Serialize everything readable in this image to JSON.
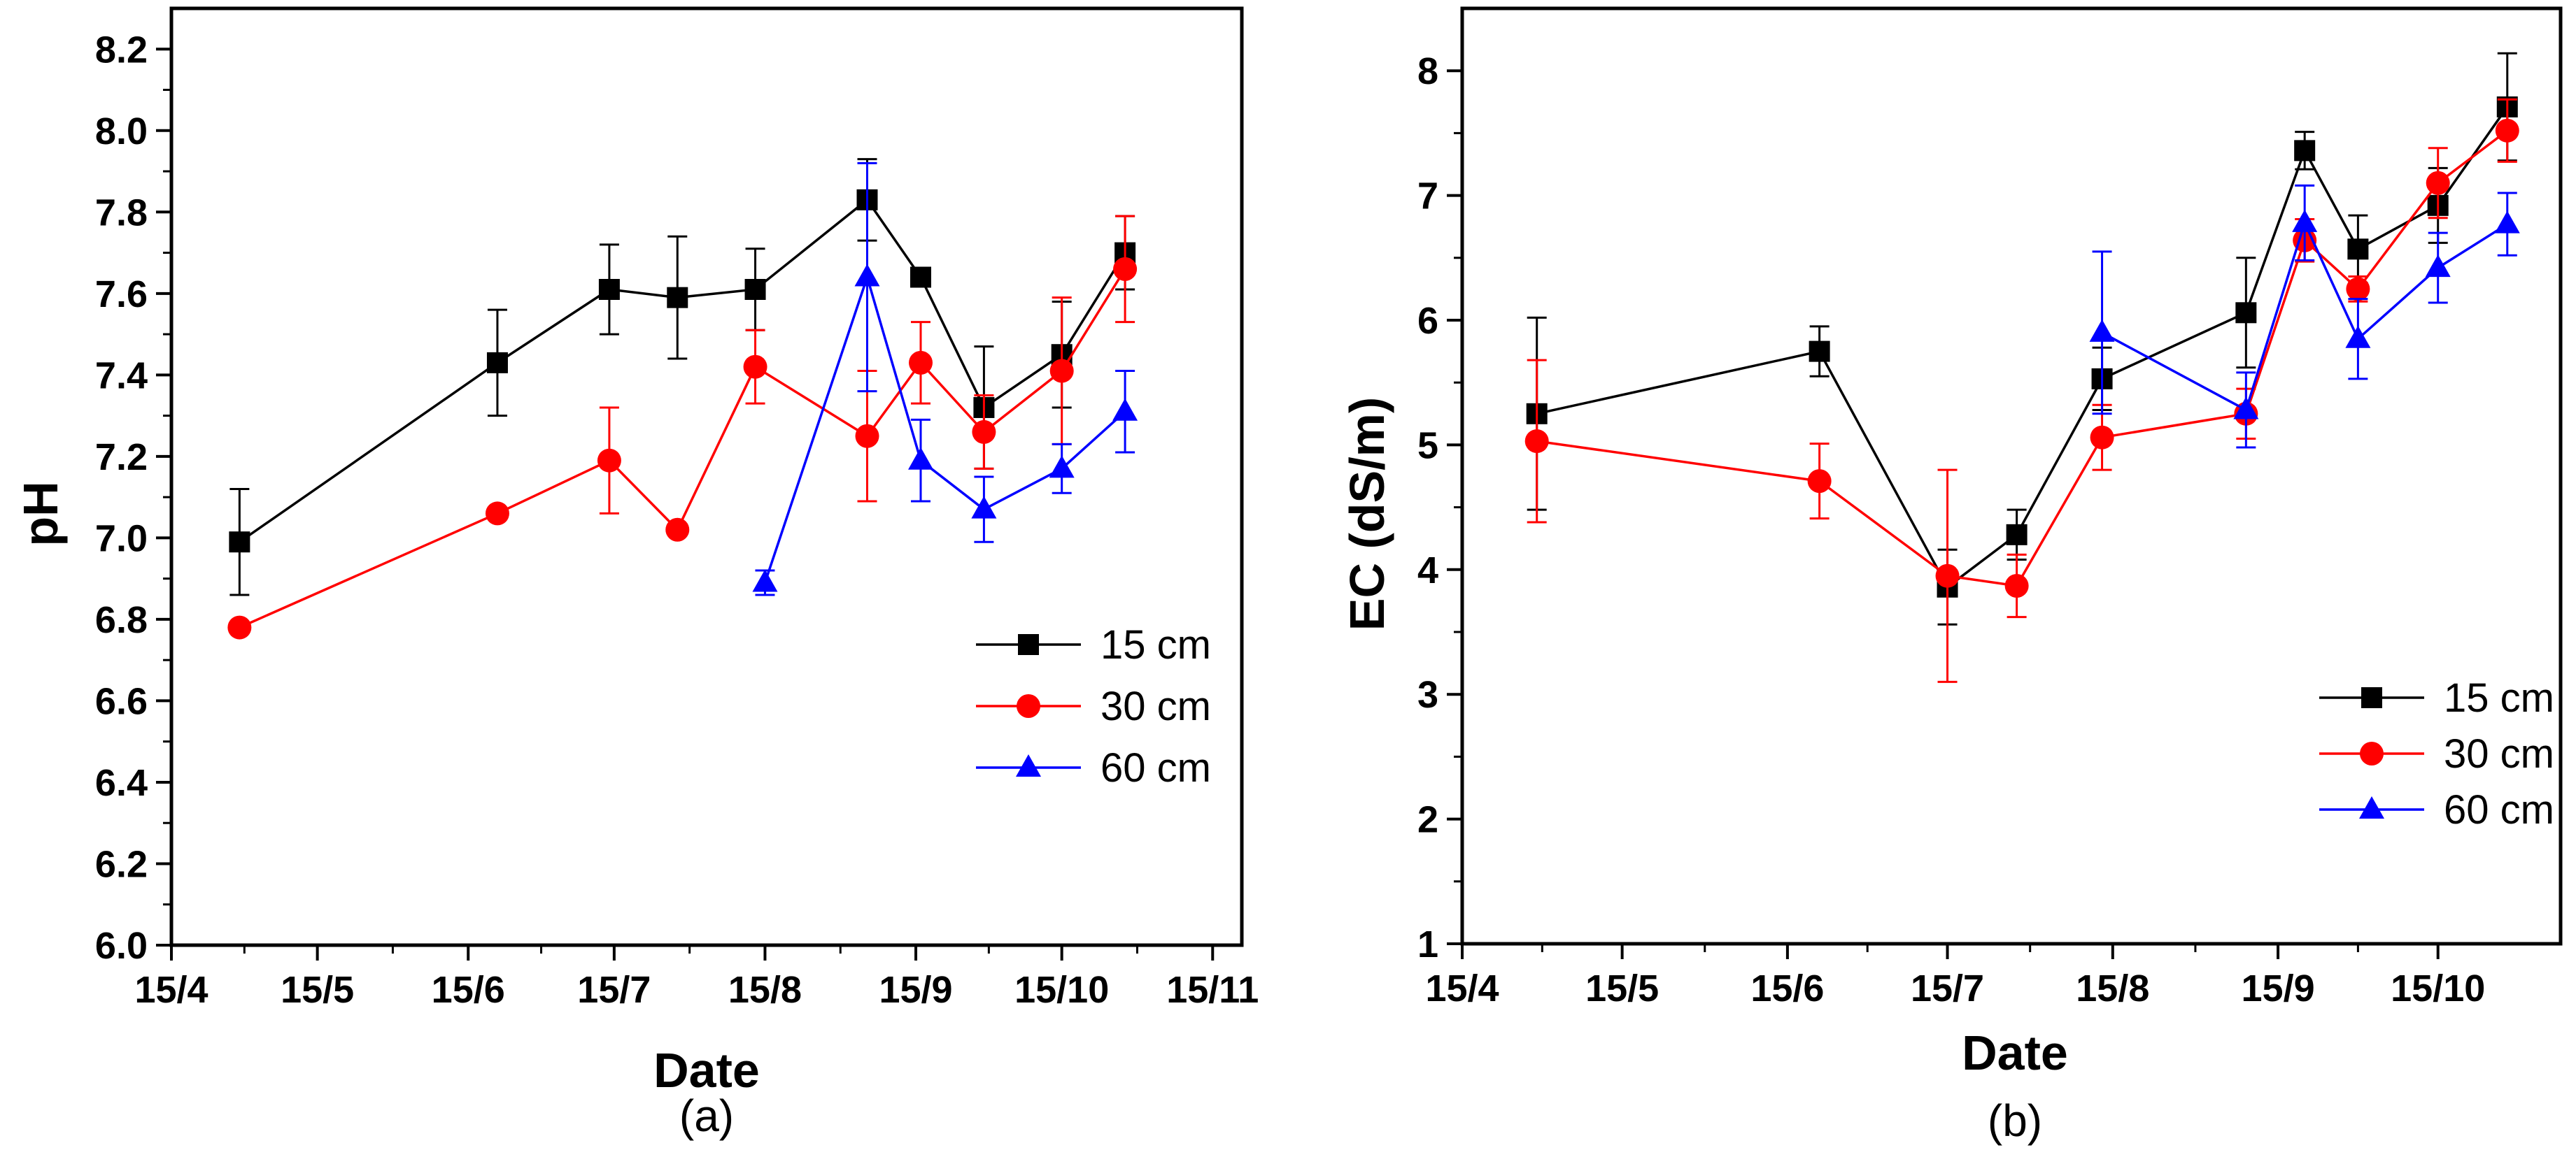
{
  "chart_data": [
    {
      "type": "line",
      "panel_label": "(a)",
      "xlabel": "Date",
      "ylabel": "pH",
      "xlim": [
        0,
        220
      ],
      "ylim": [
        6.0,
        8.3
      ],
      "x_tick_positions": [
        0,
        30,
        61,
        91,
        122,
        153,
        183,
        214
      ],
      "x_tick_labels": [
        "15/4",
        "15/5",
        "15/6",
        "15/7",
        "15/8",
        "15/9",
        "15/10",
        "15/11"
      ],
      "y_ticks": [
        6.0,
        6.2,
        6.4,
        6.6,
        6.8,
        7.0,
        7.2,
        7.4,
        7.6,
        7.8,
        8.0,
        8.2
      ],
      "y_tick_labels": [
        "6.0",
        "6.2",
        "6.4",
        "6.6",
        "6.8",
        "7.0",
        "7.2",
        "7.4",
        "7.6",
        "7.8",
        "8.0",
        "8.2"
      ],
      "legend_position": "right",
      "series": [
        {
          "name": "15 cm",
          "color": "#000000",
          "marker": "square",
          "x": [
            14,
            67,
            90,
            104,
            120,
            143,
            154,
            167,
            183,
            196
          ],
          "y": [
            6.99,
            7.43,
            7.61,
            7.59,
            7.61,
            7.83,
            7.64,
            7.32,
            7.45,
            7.7
          ],
          "err": [
            0.13,
            0.13,
            0.11,
            0.15,
            0.1,
            0.1,
            0.02,
            0.15,
            0.13,
            0.09
          ]
        },
        {
          "name": "30 cm",
          "color": "#ff0000",
          "marker": "circle",
          "x": [
            14,
            67,
            90,
            104,
            120,
            143,
            154,
            167,
            183,
            196
          ],
          "y": [
            6.78,
            7.06,
            7.19,
            7.02,
            7.42,
            7.25,
            7.43,
            7.26,
            7.41,
            7.66
          ],
          "err": [
            0,
            0,
            0.13,
            0,
            0.09,
            0.16,
            0.1,
            0.09,
            0.18,
            0.13
          ]
        },
        {
          "name": "60 cm",
          "color": "#0000ff",
          "marker": "triangle",
          "x": [
            122,
            143,
            154,
            167,
            183,
            196
          ],
          "y": [
            6.89,
            7.64,
            7.19,
            7.07,
            7.17,
            7.31
          ],
          "err": [
            0.03,
            0.28,
            0.1,
            0.08,
            0.06,
            0.1
          ]
        }
      ]
    },
    {
      "type": "line",
      "panel_label": "(b)",
      "xlabel": "Date",
      "ylabel": "EC (dS/m)",
      "xlim": [
        0,
        206
      ],
      "ylim": [
        1,
        8.5
      ],
      "x_tick_positions": [
        0,
        30,
        61,
        91,
        122,
        153,
        183
      ],
      "x_tick_labels": [
        "15/4",
        "15/5",
        "15/6",
        "15/7",
        "15/8",
        "15/9",
        "15/10"
      ],
      "y_ticks": [
        1,
        2,
        3,
        4,
        5,
        6,
        7,
        8
      ],
      "y_tick_labels": [
        "1",
        "2",
        "3",
        "4",
        "5",
        "6",
        "7",
        "8"
      ],
      "legend_position": "bottom-right",
      "series": [
        {
          "name": "15 cm",
          "color": "#000000",
          "marker": "square",
          "x": [
            14,
            67,
            91,
            104,
            120,
            147,
            158,
            168,
            183,
            196
          ],
          "y": [
            5.25,
            5.75,
            3.86,
            4.28,
            5.53,
            6.06,
            7.36,
            6.57,
            6.92,
            7.71
          ],
          "err": [
            0.77,
            0.2,
            0.3,
            0.2,
            0.25,
            0.44,
            0.15,
            0.27,
            0.3,
            0.43
          ]
        },
        {
          "name": "30 cm",
          "color": "#ff0000",
          "marker": "circle",
          "x": [
            14,
            67,
            91,
            104,
            120,
            147,
            158,
            168,
            183,
            196
          ],
          "y": [
            5.03,
            4.71,
            3.95,
            3.87,
            5.06,
            5.25,
            6.64,
            6.25,
            7.1,
            7.52
          ],
          "err": [
            0.65,
            0.3,
            0.85,
            0.25,
            0.26,
            0.2,
            0.17,
            0.1,
            0.28,
            0.25
          ]
        },
        {
          "name": "60 cm",
          "color": "#0000ff",
          "marker": "triangle",
          "x": [
            120,
            147,
            158,
            168,
            183,
            196
          ],
          "y": [
            5.9,
            5.28,
            6.78,
            5.85,
            6.42,
            6.77
          ],
          "err": [
            0.65,
            0.3,
            0.3,
            0.32,
            0.28,
            0.25
          ]
        }
      ]
    }
  ]
}
